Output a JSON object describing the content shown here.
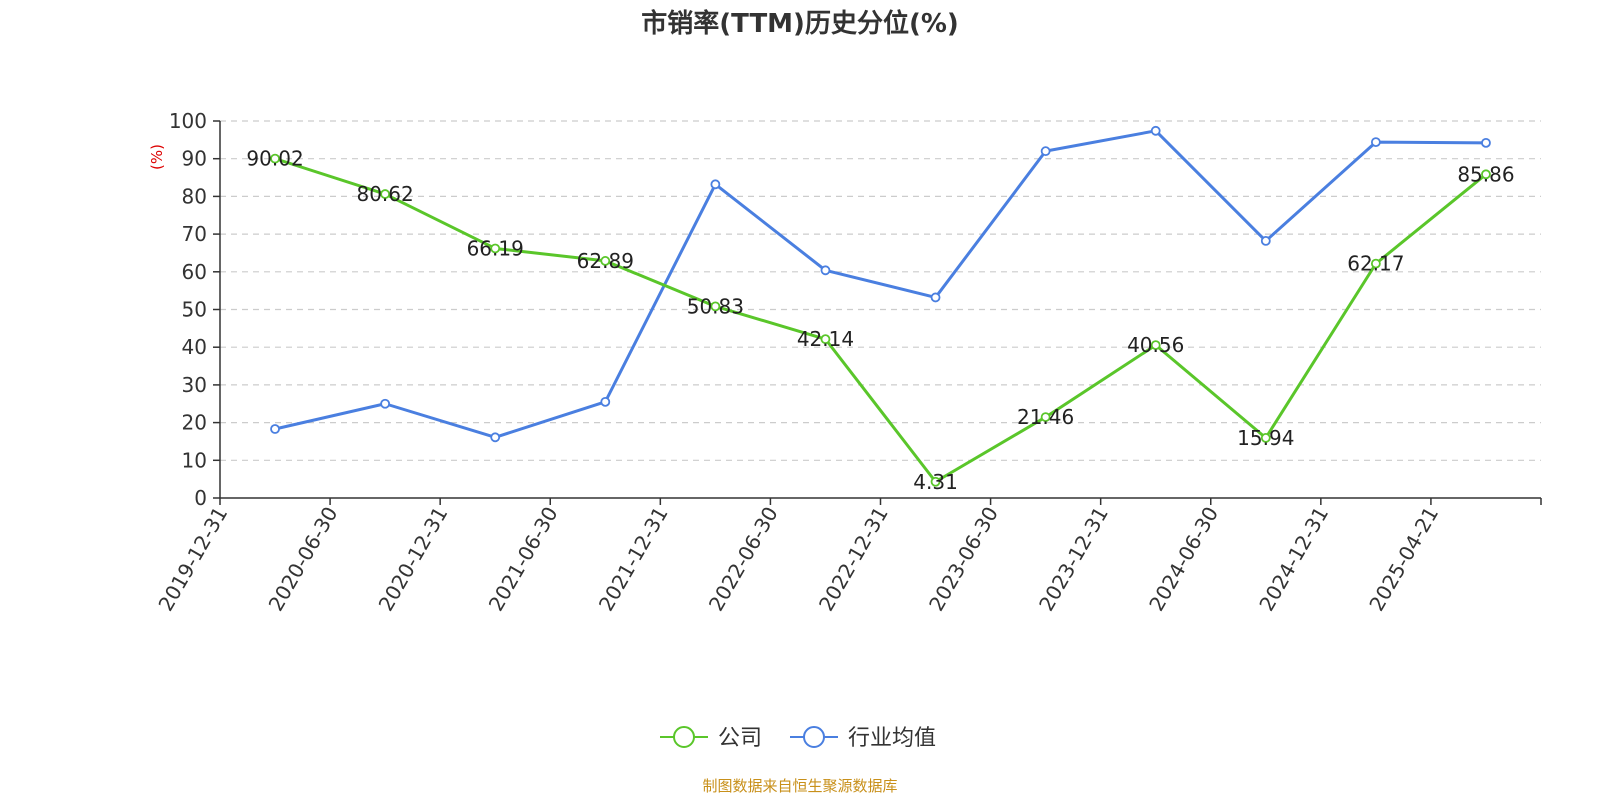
{
  "chart_data": {
    "type": "line",
    "title": "市销率(TTM)历史分位(%)",
    "ylabel": "(%)",
    "ylim": [
      0,
      100
    ],
    "yticks": [
      0,
      10,
      20,
      30,
      40,
      50,
      60,
      70,
      80,
      90,
      100
    ],
    "categories": [
      "2019-12-31",
      "2020-06-30",
      "2020-12-31",
      "2021-06-30",
      "2021-12-31",
      "2022-06-30",
      "2022-12-31",
      "2023-06-30",
      "2023-12-31",
      "2024-06-30",
      "2024-12-31",
      "2025-04-21"
    ],
    "grid": true,
    "legend_position": "bottom",
    "series": [
      {
        "name": "公司",
        "color": "#5ac62a",
        "values": [
          90.02,
          80.62,
          66.19,
          62.89,
          50.83,
          42.14,
          4.31,
          21.46,
          40.56,
          15.94,
          62.17,
          85.86
        ],
        "labels": [
          "90.02",
          "80.62",
          "66.19",
          "62.89",
          "50.83",
          "42.14",
          "4.31",
          "21.46",
          "40.56",
          "15.94",
          "62.17",
          "85.86"
        ]
      },
      {
        "name": "行业均值",
        "color": "#4a7fe0",
        "values": [
          18.3,
          25.0,
          16.1,
          25.5,
          83.2,
          60.4,
          53.2,
          92.0,
          97.4,
          68.2,
          94.4,
          94.2
        ]
      }
    ],
    "source": "制图数据来自恒生聚源数据库",
    "source_color": "#c8901a",
    "ylabel_color": "#dd0000",
    "axis_color": "#333333",
    "grid_color": "#cccccc"
  }
}
